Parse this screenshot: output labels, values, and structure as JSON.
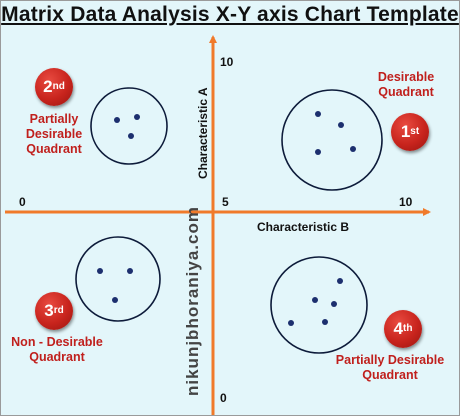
{
  "title": "Matrix Data Analysis X-Y axis Chart Template",
  "axes": {
    "x_label": "Characteristic B",
    "y_label": "Characteristic A",
    "x_min": "0",
    "x_mid": "5",
    "x_max": "10",
    "y_min": "0",
    "y_max": "10"
  },
  "quadrants": {
    "q1": {
      "badge_num": "1",
      "badge_suffix": "st",
      "line1": "Desirable",
      "line2": "Quadrant",
      "line3": ""
    },
    "q2": {
      "badge_num": "2",
      "badge_suffix": "nd",
      "line1": "Partially",
      "line2": "Desirable",
      "line3": "Quadrant"
    },
    "q3": {
      "badge_num": "3",
      "badge_suffix": "rd",
      "line1": "Non - Desirable",
      "line2": "Quadrant",
      "line3": ""
    },
    "q4": {
      "badge_num": "4",
      "badge_suffix": "th",
      "line1": "Partially Desirable",
      "line2": "Quadrant",
      "line3": ""
    }
  },
  "watermark": "nikunjbhoraniya.com",
  "colors": {
    "axis": "#f07a2a",
    "label": "#c0201d",
    "circle": "#0d1b3a",
    "dot": "#1c2f6e"
  }
}
